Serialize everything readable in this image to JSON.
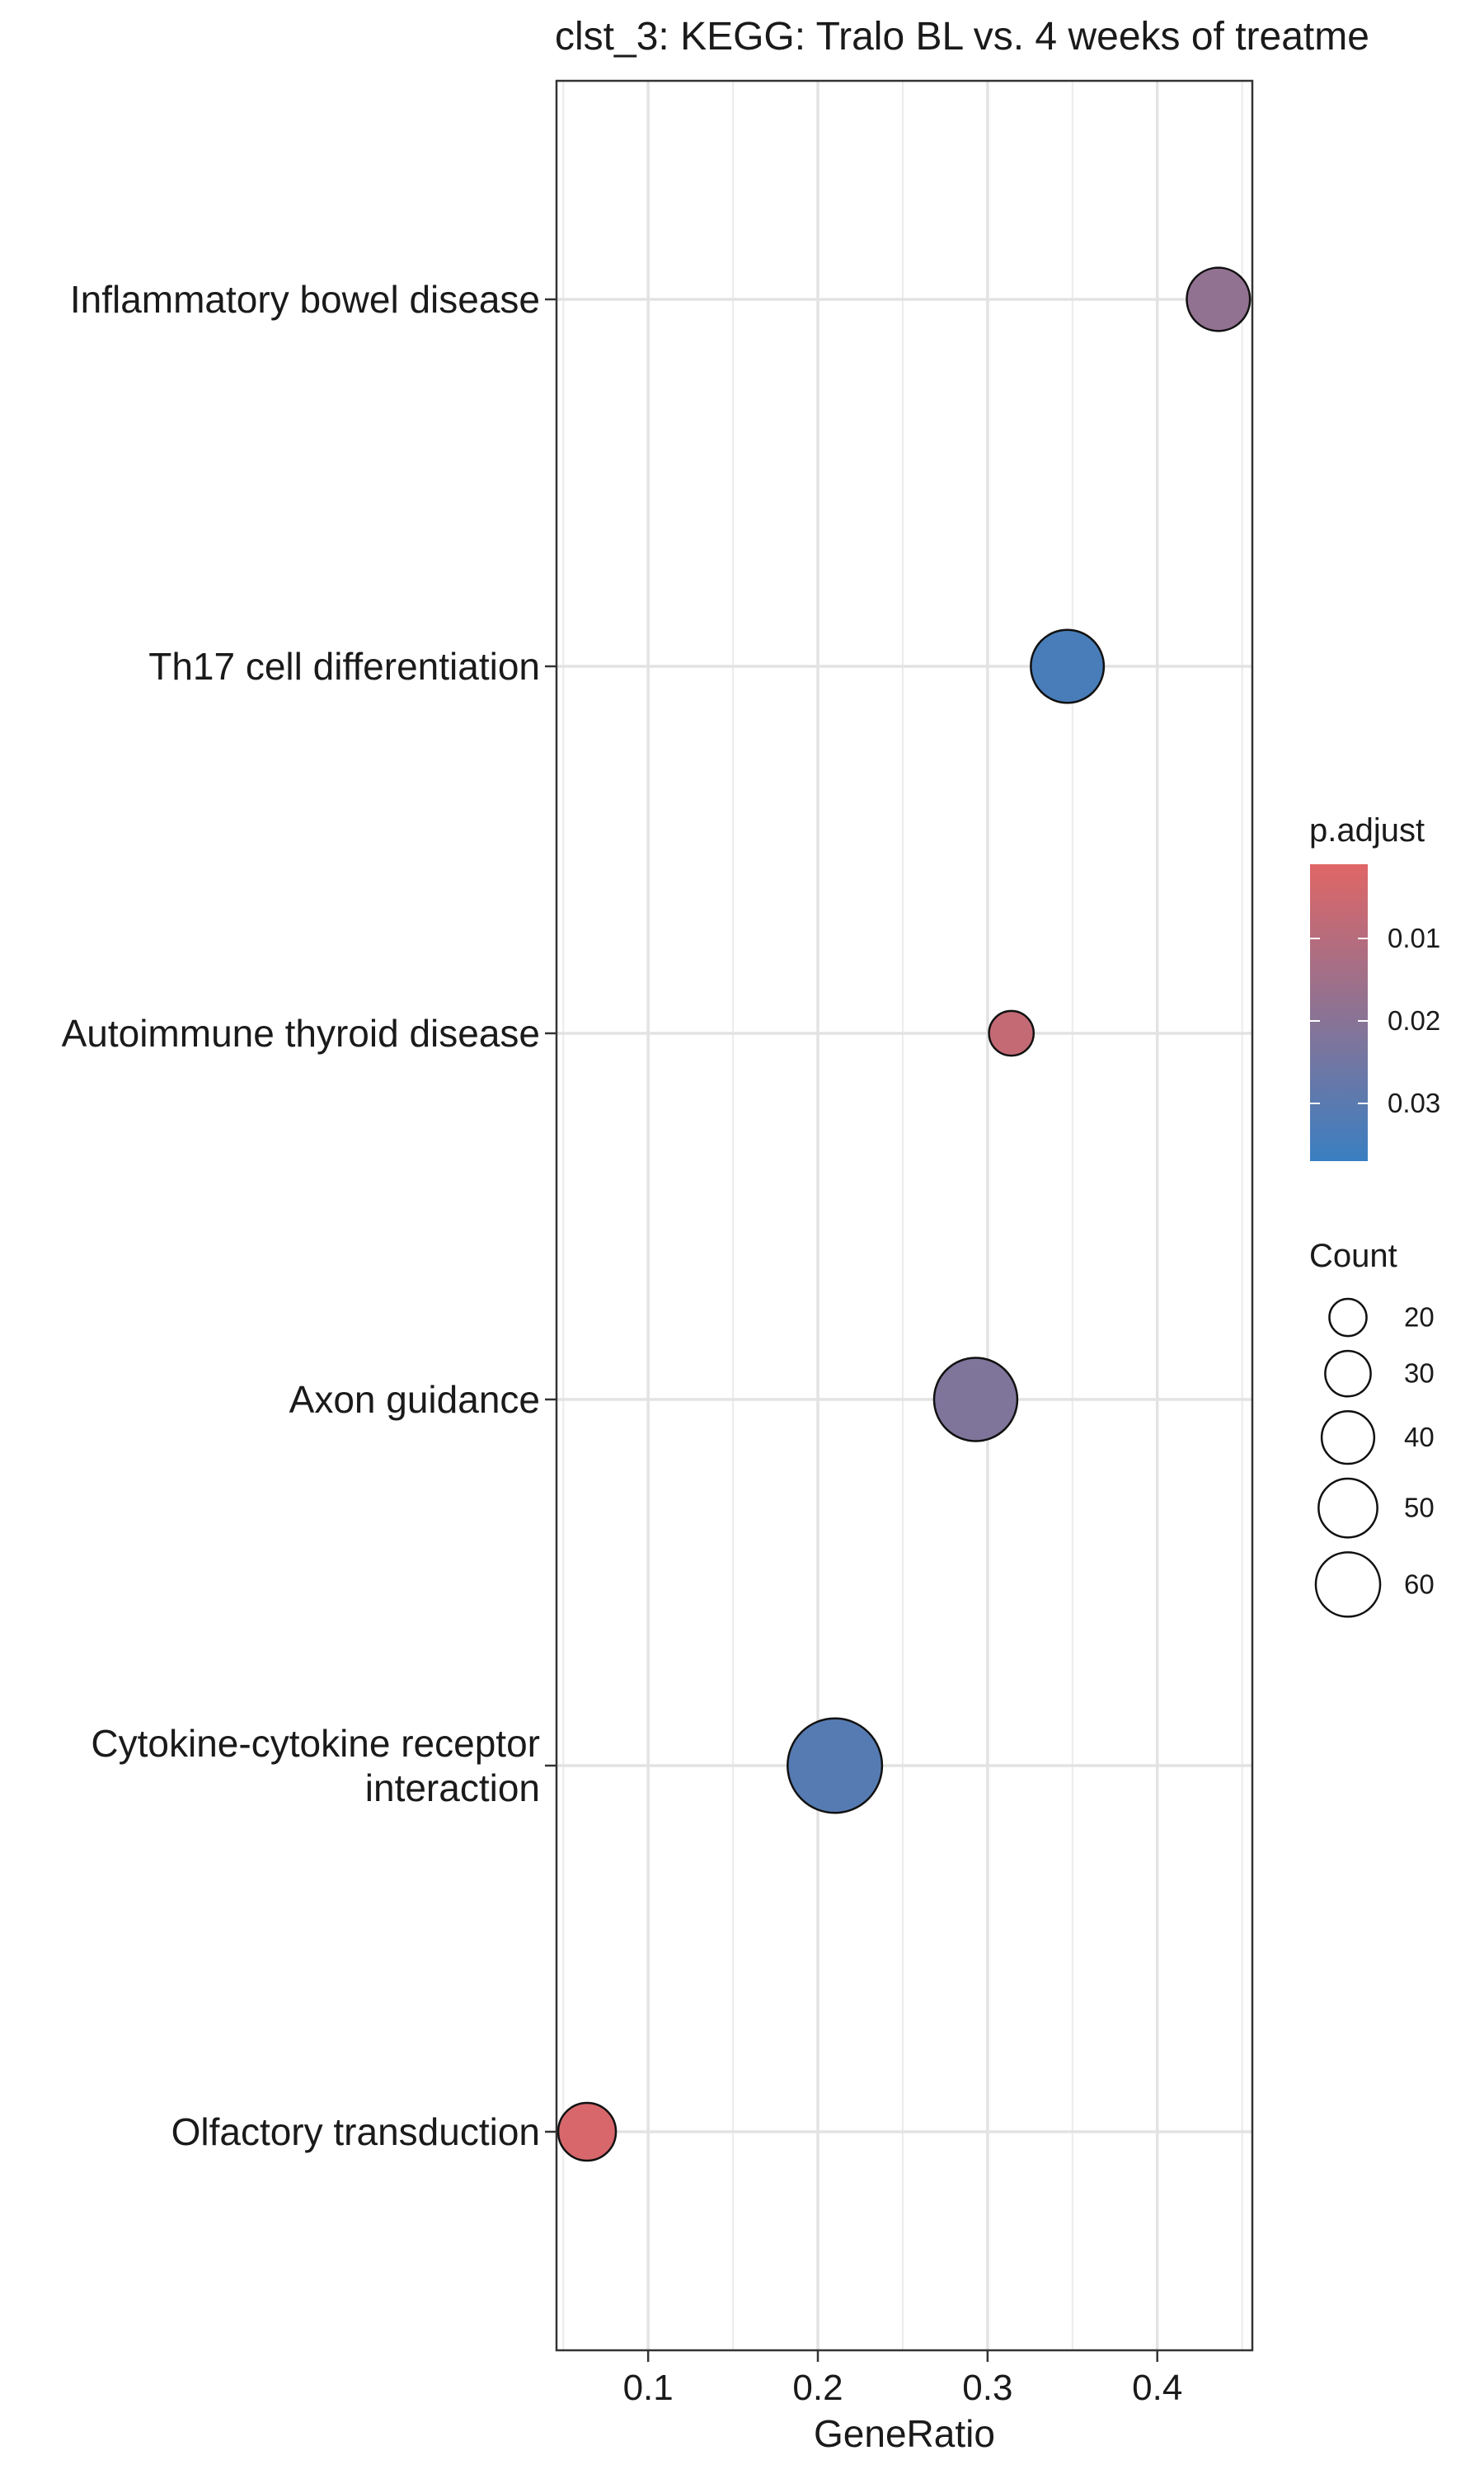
{
  "chart_data": {
    "type": "scatter",
    "title": "clst_3: KEGG: Tralo BL vs. 4 weeks of treatme",
    "xlabel": "GeneRatio",
    "ylabel": "",
    "xlim": [
      0.046,
      0.456
    ],
    "xticks": [
      "0.1",
      "0.2",
      "0.3",
      "0.4"
    ],
    "xtick_values": [
      0.1,
      0.2,
      0.3,
      0.4
    ],
    "grid": true,
    "categories": [
      [
        "Inflammatory bowel disease"
      ],
      [
        "Th17 cell differentiation"
      ],
      [
        "Autoimmune thyroid disease"
      ],
      [
        "Axon guidance"
      ],
      [
        "Cytokine-cytokine receptor",
        "interaction"
      ],
      [
        "Olfactory transduction"
      ]
    ],
    "points": [
      {
        "x": 0.436,
        "p_adjust": 0.018,
        "count": 30
      },
      {
        "x": 0.347,
        "p_adjust": 0.034,
        "count": 40
      },
      {
        "x": 0.314,
        "p_adjust": 0.007,
        "count": 15
      },
      {
        "x": 0.293,
        "p_adjust": 0.022,
        "count": 52
      },
      {
        "x": 0.21,
        "p_adjust": 0.031,
        "count": 67
      },
      {
        "x": 0.064,
        "p_adjust": 0.003,
        "count": 25
      }
    ],
    "color_legend": {
      "title": "p.adjust",
      "labels": [
        "0.01",
        "0.02",
        "0.03"
      ],
      "values": [
        0.01,
        0.02,
        0.03
      ],
      "range": [
        0.001,
        0.037
      ],
      "low_color": "#e06666",
      "high_color": "#3a7fc1"
    },
    "size_legend": {
      "title": "Count",
      "labels": [
        "20",
        "30",
        "40",
        "50",
        "60"
      ],
      "values": [
        20,
        30,
        40,
        50,
        60
      ]
    },
    "legend_position": "right"
  }
}
